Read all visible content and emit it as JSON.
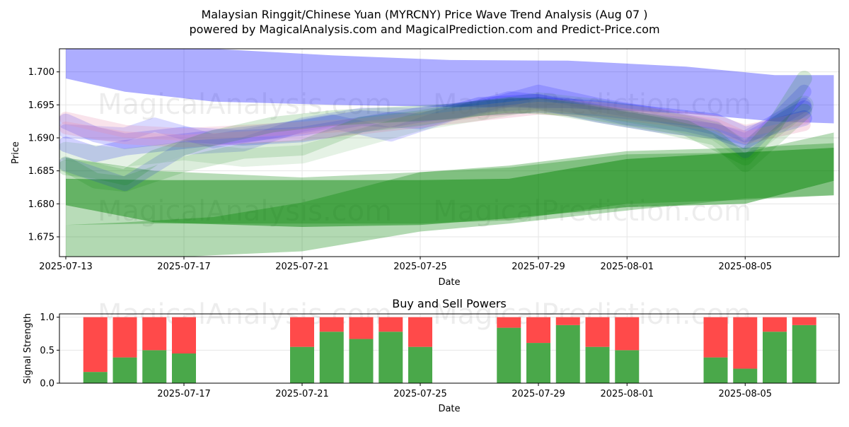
{
  "title_line1": "Malaysian Ringgit/Chinese Yuan (MYRCNY) Price Wave Trend Analysis (Aug 07 )",
  "title_line2": "powered by MagicalAnalysis.com and MagicalPrediction.com and Predict-Price.com",
  "watermarks": [
    "MagicalAnalysis.com",
    "MagicalPrediction.com"
  ],
  "colors": {
    "blue_band": "#0000ff",
    "green_band": "#008000",
    "buy": "#4aa84a",
    "sell": "#ff4a4a",
    "grid": "#e6e6e6"
  },
  "chart_data": [
    {
      "type": "area",
      "xlabel": "Date",
      "ylabel": "Price",
      "x_ticks": [
        "2025-07-13",
        "2025-07-17",
        "2025-07-21",
        "2025-07-25",
        "2025-07-29",
        "2025-08-01",
        "2025-08-05"
      ],
      "y_ticks": [
        "1.675",
        "1.680",
        "1.685",
        "1.690",
        "1.695",
        "1.700"
      ],
      "ylim": [
        1.672,
        1.7035
      ],
      "grid": true,
      "bands": [
        {
          "color": "blue",
          "alpha": 0.32,
          "x": [
            "2025-07-13",
            "2025-07-15",
            "2025-07-18",
            "2025-07-22",
            "2025-07-26",
            "2025-07-30",
            "2025-08-03",
            "2025-08-06",
            "2025-08-08"
          ],
          "upper": [
            1.7035,
            1.7035,
            1.7035,
            1.7025,
            1.7018,
            1.7017,
            1.7008,
            1.6995,
            1.6995
          ],
          "lower": [
            1.699,
            1.697,
            1.6955,
            1.695,
            1.6947,
            1.6945,
            1.6937,
            1.6925,
            1.6922
          ]
        },
        {
          "color": "green",
          "alpha": 0.45,
          "x": [
            "2025-07-13",
            "2025-07-16",
            "2025-07-21",
            "2025-07-25",
            "2025-07-28",
            "2025-08-01",
            "2025-08-05",
            "2025-08-08"
          ],
          "upper": [
            1.6838,
            1.6836,
            1.6836,
            1.6836,
            1.6838,
            1.6868,
            1.6878,
            1.6885
          ],
          "lower": [
            1.6798,
            1.6772,
            1.6765,
            1.6768,
            1.6778,
            1.6795,
            1.68,
            1.6835
          ]
        },
        {
          "color": "green",
          "alpha": 0.28,
          "x": [
            "2025-07-13",
            "2025-07-16",
            "2025-07-21",
            "2025-07-25",
            "2025-07-28",
            "2025-08-01",
            "2025-08-05",
            "2025-08-08"
          ],
          "upper": [
            1.687,
            1.685,
            1.684,
            1.6848,
            1.6855,
            1.6875,
            1.6878,
            1.6908
          ],
          "lower": [
            1.6768,
            1.677,
            1.677,
            1.677,
            1.6775,
            1.68,
            1.6806,
            1.6813
          ]
        },
        {
          "color": "green",
          "alpha": 0.3,
          "x": [
            "2025-07-13",
            "2025-07-15",
            "2025-07-18",
            "2025-07-21",
            "2025-07-25",
            "2025-07-28",
            "2025-08-01",
            "2025-08-05",
            "2025-08-08"
          ],
          "upper": [
            1.6768,
            1.6772,
            1.678,
            1.6802,
            1.6848,
            1.6858,
            1.688,
            1.6885,
            1.6892
          ],
          "lower": [
            1.6718,
            1.6715,
            1.6722,
            1.6728,
            1.6758,
            1.677,
            1.679,
            1.6808,
            1.6813
          ]
        }
      ],
      "wave_lines": [
        {
          "color": "blue",
          "alpha": 0.18,
          "width": 22,
          "x": [
            "2025-07-13",
            "2025-07-14",
            "2025-07-15",
            "2025-07-17",
            "2025-07-19",
            "2025-07-21",
            "2025-07-23",
            "2025-07-25",
            "2025-07-27",
            "2025-07-29",
            "2025-07-31",
            "2025-08-02",
            "2025-08-04",
            "2025-08-05",
            "2025-08-07"
          ],
          "y": [
            1.6925,
            1.6905,
            1.6895,
            1.6905,
            1.69,
            1.6905,
            1.692,
            1.6935,
            1.6945,
            1.695,
            1.6945,
            1.6935,
            1.6925,
            1.6905,
            1.693
          ]
        },
        {
          "color": "blue",
          "alpha": 0.18,
          "width": 22,
          "x": [
            "2025-07-13",
            "2025-07-14",
            "2025-07-15",
            "2025-07-17",
            "2025-07-19",
            "2025-07-21",
            "2025-07-23",
            "2025-07-25",
            "2025-07-27",
            "2025-07-29",
            "2025-07-31",
            "2025-08-02",
            "2025-08-04",
            "2025-08-05",
            "2025-08-07"
          ],
          "y": [
            1.689,
            1.6875,
            1.6885,
            1.6895,
            1.6905,
            1.6915,
            1.693,
            1.6925,
            1.695,
            1.6955,
            1.6935,
            1.692,
            1.691,
            1.6895,
            1.6945
          ]
        },
        {
          "color": "blue",
          "alpha": 0.15,
          "width": 20,
          "x": [
            "2025-07-13",
            "2025-07-15",
            "2025-07-16",
            "2025-07-18",
            "2025-07-20",
            "2025-07-22",
            "2025-07-24",
            "2025-07-26",
            "2025-07-28",
            "2025-07-30",
            "2025-08-01",
            "2025-08-03",
            "2025-08-05",
            "2025-08-07"
          ],
          "y": [
            1.691,
            1.6905,
            1.692,
            1.6895,
            1.691,
            1.6925,
            1.6905,
            1.6935,
            1.696,
            1.695,
            1.693,
            1.692,
            1.69,
            1.695
          ]
        },
        {
          "color": "blue",
          "alpha": 0.15,
          "width": 20,
          "x": [
            "2025-07-13",
            "2025-07-15",
            "2025-07-17",
            "2025-07-19",
            "2025-07-21",
            "2025-07-23",
            "2025-07-25",
            "2025-07-27",
            "2025-07-29",
            "2025-07-31",
            "2025-08-02",
            "2025-08-04",
            "2025-08-05",
            "2025-08-07"
          ],
          "y": [
            1.686,
            1.683,
            1.6885,
            1.689,
            1.692,
            1.6935,
            1.6935,
            1.6945,
            1.697,
            1.695,
            1.6935,
            1.6915,
            1.688,
            1.697
          ]
        },
        {
          "color": "pink",
          "alpha": 0.28,
          "width": 18,
          "x": [
            "2025-07-13",
            "2025-07-15",
            "2025-07-17",
            "2025-07-19",
            "2025-07-21",
            "2025-07-23",
            "2025-07-25",
            "2025-07-27",
            "2025-07-29",
            "2025-07-31",
            "2025-08-02",
            "2025-08-04",
            "2025-08-05",
            "2025-08-07"
          ],
          "y": [
            1.6915,
            1.69,
            1.6895,
            1.69,
            1.6905,
            1.6915,
            1.6925,
            1.6935,
            1.6945,
            1.694,
            1.693,
            1.692,
            1.69,
            1.692
          ]
        },
        {
          "color": "pink",
          "alpha": 0.25,
          "width": 18,
          "x": [
            "2025-07-13",
            "2025-07-15",
            "2025-07-17",
            "2025-07-19",
            "2025-07-21",
            "2025-07-23",
            "2025-07-25",
            "2025-07-27",
            "2025-07-29",
            "2025-07-31",
            "2025-08-02",
            "2025-08-04",
            "2025-08-05",
            "2025-08-07"
          ],
          "y": [
            1.693,
            1.691,
            1.6905,
            1.691,
            1.6915,
            1.692,
            1.693,
            1.694,
            1.695,
            1.6945,
            1.6935,
            1.6925,
            1.691,
            1.693
          ]
        },
        {
          "color": "green",
          "alpha": 0.16,
          "width": 22,
          "x": [
            "2025-07-13",
            "2025-07-14",
            "2025-07-15",
            "2025-07-16",
            "2025-07-18",
            "2025-07-20",
            "2025-07-22",
            "2025-07-24",
            "2025-07-26",
            "2025-07-28",
            "2025-07-30",
            "2025-08-01",
            "2025-08-03",
            "2025-08-05",
            "2025-08-06",
            "2025-08-07"
          ],
          "y": [
            1.6855,
            1.685,
            1.684,
            1.687,
            1.69,
            1.692,
            1.693,
            1.6935,
            1.694,
            1.695,
            1.6945,
            1.693,
            1.6915,
            1.687,
            1.692,
            1.699
          ]
        },
        {
          "color": "green",
          "alpha": 0.14,
          "width": 22,
          "x": [
            "2025-07-13",
            "2025-07-14",
            "2025-07-15",
            "2025-07-17",
            "2025-07-19",
            "2025-07-21",
            "2025-07-23",
            "2025-07-25",
            "2025-07-27",
            "2025-07-29",
            "2025-07-31",
            "2025-08-02",
            "2025-08-04",
            "2025-08-05",
            "2025-08-07"
          ],
          "y": [
            1.686,
            1.6835,
            1.683,
            1.686,
            1.688,
            1.6885,
            1.692,
            1.693,
            1.6945,
            1.695,
            1.6935,
            1.692,
            1.69,
            1.686,
            1.694
          ]
        },
        {
          "color": "green",
          "alpha": 0.1,
          "width": 26,
          "x": [
            "2025-07-13",
            "2025-07-15",
            "2025-07-17",
            "2025-07-19",
            "2025-07-21",
            "2025-07-23",
            "2025-07-25",
            "2025-07-27",
            "2025-07-29",
            "2025-07-31",
            "2025-08-02",
            "2025-08-04",
            "2025-08-05",
            "2025-08-07"
          ],
          "y": [
            1.688,
            1.687,
            1.688,
            1.687,
            1.6875,
            1.69,
            1.6925,
            1.694,
            1.6955,
            1.6945,
            1.693,
            1.691,
            1.688,
            1.695
          ]
        }
      ]
    },
    {
      "type": "bar",
      "title": "Buy and Sell Powers",
      "xlabel": "Date",
      "ylabel": "Signal Strength",
      "x_ticks": [
        "2025-07-17",
        "2025-07-21",
        "2025-07-25",
        "2025-07-29",
        "2025-08-01",
        "2025-08-05"
      ],
      "y_ticks": [
        "0.0",
        "0.5",
        "1.0"
      ],
      "ylim": [
        0,
        1.05
      ],
      "categories": [
        "2025-07-14",
        "2025-07-15",
        "2025-07-16",
        "2025-07-17",
        "2025-07-21",
        "2025-07-22",
        "2025-07-23",
        "2025-07-24",
        "2025-07-25",
        "2025-07-28",
        "2025-07-29",
        "2025-07-30",
        "2025-07-31",
        "2025-08-01",
        "2025-08-04",
        "2025-08-05",
        "2025-08-06",
        "2025-08-07"
      ],
      "series": [
        {
          "name": "Buy",
          "values": [
            0.17,
            0.39,
            0.5,
            0.45,
            0.55,
            0.78,
            0.67,
            0.78,
            0.55,
            0.84,
            0.61,
            0.88,
            0.55,
            0.5,
            0.39,
            0.22,
            0.78,
            0.88
          ]
        },
        {
          "name": "Sell",
          "values": [
            0.83,
            0.61,
            0.5,
            0.55,
            0.45,
            0.22,
            0.33,
            0.22,
            0.45,
            0.16,
            0.39,
            0.12,
            0.45,
            0.5,
            0.61,
            0.78,
            0.22,
            0.12
          ]
        }
      ]
    }
  ]
}
